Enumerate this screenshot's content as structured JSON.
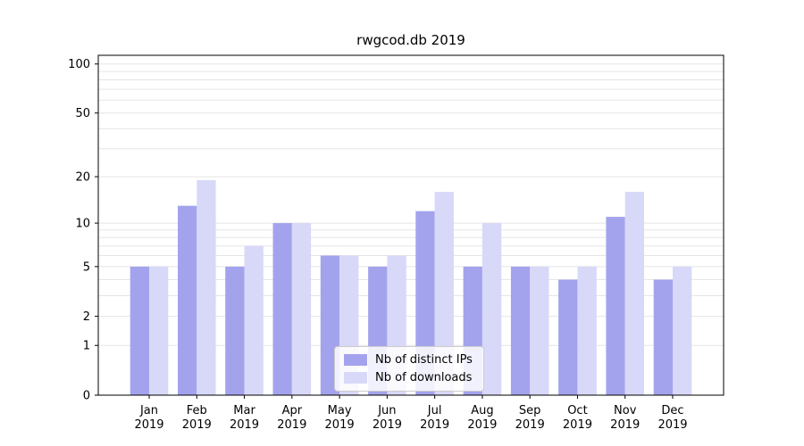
{
  "title": "rwgcod.db 2019",
  "chart_data": {
    "type": "bar",
    "title": "rwgcod.db 2019",
    "xlabel": "",
    "ylabel": "",
    "categories": [
      "Jan",
      "Feb",
      "Mar",
      "Apr",
      "May",
      "Jun",
      "Jul",
      "Aug",
      "Sep",
      "Oct",
      "Nov",
      "Dec"
    ],
    "year": "2019",
    "series": [
      {
        "name": "Nb of distinct IPs",
        "color": "#a3a3ed",
        "values": [
          5,
          13,
          5,
          10,
          6,
          5,
          12,
          5,
          5,
          4,
          11,
          4
        ]
      },
      {
        "name": "Nb of downloads",
        "color": "#d8d8f8",
        "values": [
          5,
          19,
          7,
          10,
          6,
          6,
          16,
          10,
          5,
          5,
          16,
          5
        ]
      }
    ],
    "yticks": [
      0,
      1,
      2,
      5,
      10,
      20,
      50,
      100
    ],
    "grid_values": [
      1,
      2,
      3,
      4,
      5,
      6,
      7,
      8,
      9,
      10,
      20,
      30,
      40,
      50,
      60,
      70,
      80,
      90,
      100
    ],
    "ylim": [
      0,
      113
    ],
    "yscale": "log1p",
    "grid": true,
    "legend_position": "lower center"
  },
  "legend": {
    "items": [
      {
        "label": "Nb of distinct IPs"
      },
      {
        "label": "Nb of downloads"
      }
    ]
  },
  "colors": {
    "bar_ips": "#a3a3ed",
    "bar_downloads": "#d8d8f8",
    "grid": "#e5e5e5",
    "axis": "#000000",
    "background": "#ffffff"
  }
}
